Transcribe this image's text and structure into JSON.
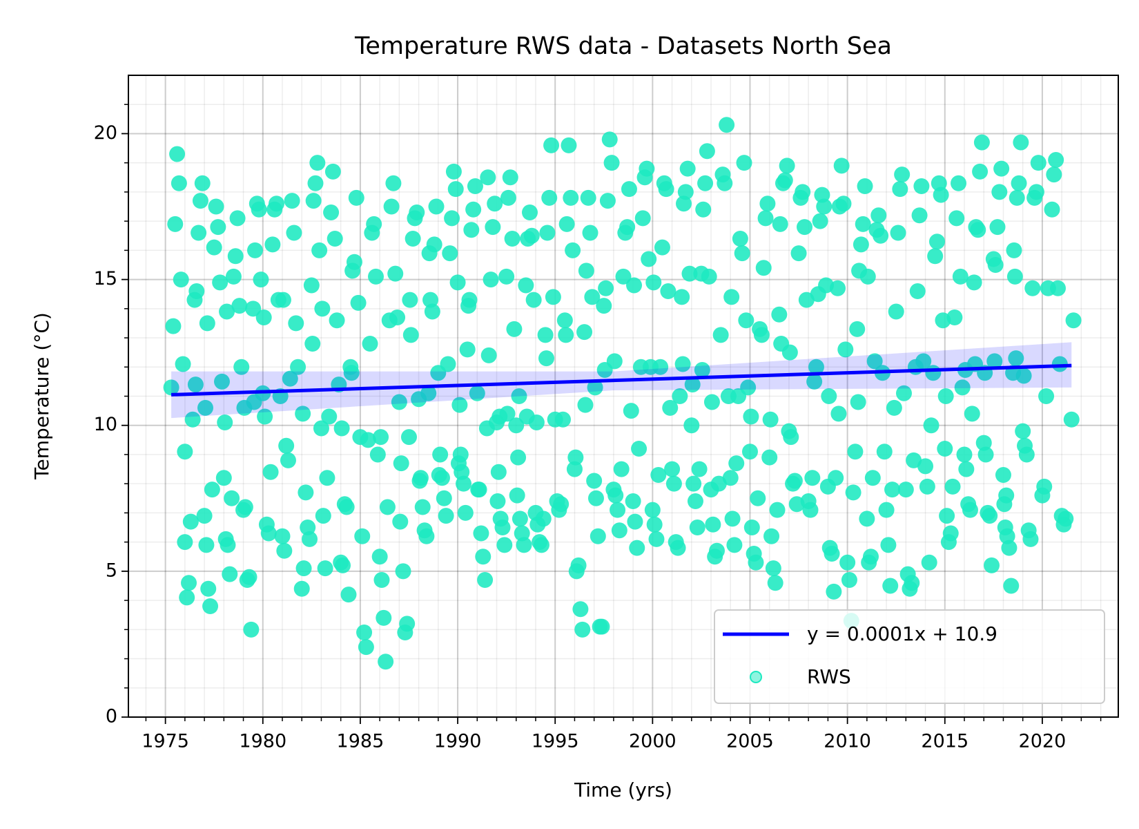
{
  "chart_data": {
    "type": "scatter",
    "title": "Temperature RWS data - Datasets North Sea",
    "xlabel": "Time (yrs)",
    "ylabel": "Temperature (°C)",
    "xlim": [
      1973.1,
      2023.9
    ],
    "ylim": [
      0,
      22
    ],
    "xticks": [
      1975,
      1980,
      1985,
      1990,
      1995,
      2000,
      2005,
      2010,
      2015,
      2020
    ],
    "yticks": [
      0,
      5,
      10,
      15,
      20
    ],
    "xminorticks": [
      1974,
      1976,
      1977,
      1978,
      1979,
      1981,
      1982,
      1983,
      1984,
      1986,
      1987,
      1988,
      1989,
      1991,
      1992,
      1993,
      1994,
      1996,
      1997,
      1998,
      1999,
      2001,
      2002,
      2003,
      2004,
      2006,
      2007,
      2008,
      2009,
      2011,
      2012,
      2013,
      2014,
      2016,
      2017,
      2018,
      2019,
      2021,
      2022,
      2023
    ],
    "yminorticks": [
      1,
      2,
      3,
      4,
      6,
      7,
      8,
      9,
      11,
      12,
      13,
      14,
      16,
      17,
      18,
      19,
      21
    ],
    "grid": true,
    "legend": "lower right",
    "trend": {
      "name": "y = 0.0001x + 10.9",
      "color": "#0000ff",
      "x": [
        1975.3,
        2021.5
      ],
      "values": [
        11.05,
        12.05
      ]
    },
    "band": {
      "color": "#0000ff",
      "x": [
        1975.3,
        1998,
        2021.5
      ],
      "lower": [
        10.25,
        11.2,
        11.3
      ],
      "upper": [
        11.85,
        11.85,
        12.85
      ]
    },
    "series": [
      {
        "name": "RWS",
        "color": "#1de9c0",
        "x": [
          1975.3,
          1975.4,
          1975.5,
          1975.6,
          1975.7,
          1975.8,
          1975.9,
          1976,
          1976,
          1976.1,
          1976.2,
          1976.3,
          1976.4,
          1976.5,
          1976.6,
          1976.7,
          1976.8,
          1976.9,
          1976.55,
          1977,
          1977.1,
          1977.2,
          1977.3,
          1977.4,
          1977.05,
          1977.15,
          1977.5,
          1977.6,
          1977.7,
          1977.8,
          1977.9,
          1978,
          1978.1,
          1978.2,
          1978.3,
          1978.4,
          1978.05,
          1978.15,
          1978.5,
          1978.6,
          1978.7,
          1978.8,
          1978.9,
          1979,
          1979.1,
          1979.2,
          1979.3,
          1979.4,
          1979.05,
          1979.5,
          1979.6,
          1979.7,
          1979.8,
          1979.9,
          1979.55,
          1980,
          1980.1,
          1980.2,
          1980.3,
          1980.4,
          1980.05,
          1980.5,
          1980.6,
          1980.7,
          1980.8,
          1980.9,
          1981,
          1981.1,
          1981.2,
          1981.3,
          1981.4,
          1981.05,
          1981.5,
          1981.6,
          1981.7,
          1981.8,
          1982,
          1982.1,
          1982.2,
          1982.3,
          1982.4,
          1982.05,
          1982.5,
          1982.6,
          1982.7,
          1982.8,
          1982.9,
          1982.55,
          1983,
          1983.1,
          1983.2,
          1983.3,
          1983.4,
          1983.05,
          1983.5,
          1983.6,
          1983.7,
          1983.8,
          1983.9,
          1984,
          1984.1,
          1984.2,
          1984.3,
          1984.4,
          1984.05,
          1984.5,
          1984.6,
          1984.7,
          1984.8,
          1984.9,
          1984.55,
          1985,
          1985.1,
          1985.2,
          1985.3,
          1985.4,
          1985.5,
          1985.6,
          1985.7,
          1985.8,
          1985.9,
          1986,
          1986.1,
          1986.2,
          1986.3,
          1986.4,
          1986.05,
          1986.5,
          1986.6,
          1986.7,
          1986.8,
          1986.9,
          1987,
          1987.1,
          1987.2,
          1987.3,
          1987.4,
          1987.05,
          1987.5,
          1987.6,
          1987.7,
          1987.8,
          1987.9,
          1987.55,
          1988,
          1988.1,
          1988.2,
          1988.3,
          1988.4,
          1988.05,
          1988.5,
          1988.6,
          1988.7,
          1988.8,
          1988.9,
          1988.55,
          1989,
          1989.1,
          1989.2,
          1989.3,
          1989.4,
          1989.05,
          1989.5,
          1989.6,
          1989.7,
          1989.8,
          1989.9,
          1990,
          1990.1,
          1990.2,
          1990.3,
          1990.4,
          1990.05,
          1990.15,
          1990.5,
          1990.6,
          1990.7,
          1990.8,
          1990.9,
          1990.55,
          1991,
          1991.1,
          1991.2,
          1991.3,
          1991.4,
          1991.05,
          1991.5,
          1991.6,
          1991.7,
          1991.8,
          1991.9,
          1991.55,
          1992,
          1992.1,
          1992.2,
          1992.3,
          1992.4,
          1992.05,
          1992.15,
          1992.5,
          1992.6,
          1992.7,
          1992.8,
          1992.9,
          1992.55,
          1993,
          1993.1,
          1993.2,
          1993.3,
          1993.4,
          1993.05,
          1993.15,
          1993.5,
          1993.6,
          1993.7,
          1993.8,
          1993.9,
          1993.55,
          1994,
          1994.1,
          1994.2,
          1994.3,
          1994.4,
          1994.05,
          1994.5,
          1994.6,
          1994.7,
          1994.8,
          1994.9,
          1994.55,
          1995,
          1995.1,
          1995.2,
          1995.3,
          1995.4,
          1995.5,
          1995.6,
          1995.7,
          1995.8,
          1995.9,
          1995.55,
          1996,
          1996.1,
          1996.2,
          1996.3,
          1996.4,
          1996.05,
          1996.5,
          1996.6,
          1996.7,
          1996.8,
          1996.9,
          1996.55,
          1997,
          1997.1,
          1997.2,
          1997.3,
          1997.4,
          1997.05,
          1997.5,
          1997.6,
          1997.7,
          1997.8,
          1997.9,
          1997.55,
          1998,
          1998.1,
          1998.2,
          1998.3,
          1998.4,
          1998.05,
          1998.5,
          1998.6,
          1998.7,
          1998.8,
          1998.9,
          1999,
          1999.1,
          1999.2,
          1999.3,
          1999.4,
          1999.05,
          1999.5,
          1999.6,
          1999.7,
          1999.8,
          1999.9,
          2000,
          2000.1,
          2000.2,
          2000.3,
          2000.4,
          2000.05,
          2000.5,
          2000.6,
          2000.7,
          2000.8,
          2000.9,
          2001,
          2001.1,
          2001.2,
          2001.3,
          2001.4,
          2001.5,
          2001.6,
          2001.7,
          2001.8,
          2001.9,
          2001.55,
          2002,
          2002.1,
          2002.2,
          2002.3,
          2002.4,
          2002.05,
          2002.5,
          2002.6,
          2002.7,
          2002.8,
          2002.9,
          2002.55,
          2003,
          2003.1,
          2003.2,
          2003.3,
          2003.4,
          2003.05,
          2003.5,
          2003.6,
          2003.7,
          2003.8,
          2003.9,
          2004,
          2004.1,
          2004.2,
          2004.3,
          2004.4,
          2004.05,
          2004.5,
          2004.6,
          2004.7,
          2004.8,
          2004.9,
          2005,
          2005.1,
          2005.2,
          2005.3,
          2005.4,
          2005.05,
          2005.5,
          2005.6,
          2005.7,
          2005.8,
          2005.9,
          2006,
          2006.1,
          2006.2,
          2006.3,
          2006.4,
          2006.05,
          2006.5,
          2006.6,
          2006.7,
          2006.8,
          2006.9,
          2006.55,
          2007,
          2007.1,
          2007.2,
          2007.3,
          2007.4,
          2007.05,
          2007.5,
          2007.6,
          2007.7,
          2007.8,
          2007.9,
          2008,
          2008.1,
          2008.2,
          2008.3,
          2008.4,
          2008.5,
          2008.6,
          2008.7,
          2008.8,
          2008.9,
          2009,
          2009.1,
          2009.2,
          2009.3,
          2009.4,
          2009.05,
          2009.5,
          2009.6,
          2009.7,
          2009.8,
          2009.9,
          2009.55,
          2010,
          2010.1,
          2010.2,
          2010.3,
          2010.4,
          2010.5,
          2010.6,
          2010.7,
          2010.8,
          2010.9,
          2010.55,
          2011,
          2011.1,
          2011.2,
          2011.3,
          2011.4,
          2011.05,
          2011.5,
          2011.6,
          2011.7,
          2011.8,
          2011.9,
          2012,
          2012.1,
          2012.2,
          2012.3,
          2012.4,
          2012.5,
          2012.6,
          2012.7,
          2012.8,
          2012.9,
          2013,
          2013.1,
          2013.2,
          2013.3,
          2013.4,
          2013.5,
          2013.6,
          2013.7,
          2013.8,
          2013.9,
          2014,
          2014.1,
          2014.2,
          2014.3,
          2014.4,
          2014.5,
          2014.6,
          2014.7,
          2014.8,
          2014.9,
          2015,
          2015.1,
          2015.2,
          2015.3,
          2015.4,
          2015.05,
          2015.5,
          2015.6,
          2015.7,
          2015.8,
          2015.9,
          2016,
          2016.1,
          2016.2,
          2016.3,
          2016.4,
          2016.05,
          2016.5,
          2016.6,
          2016.7,
          2016.8,
          2016.9,
          2016.55,
          2017,
          2017.1,
          2017.2,
          2017.3,
          2017.4,
          2017.05,
          2017.5,
          2017.6,
          2017.7,
          2017.8,
          2017.9,
          2017.55,
          2018,
          2018.1,
          2018.2,
          2018.3,
          2018.4,
          2018.05,
          2018.15,
          2018.5,
          2018.6,
          2018.7,
          2018.8,
          2018.9,
          2018.55,
          2018.65,
          2019,
          2019.1,
          2019.2,
          2019.3,
          2019.4,
          2019.05,
          2019.5,
          2019.6,
          2019.7,
          2019.8,
          2020,
          2020.1,
          2020.2,
          2020.3,
          2020.5,
          2020.6,
          2020.7,
          2020.8,
          2020.9,
          2021,
          2021.1,
          2021.2,
          2021.5,
          2021.6
        ],
        "values": [
          11.3,
          13.4,
          16.9,
          19.3,
          18.3,
          15.0,
          12.1,
          9.1,
          6.0,
          4.1,
          4.6,
          6.7,
          10.2,
          14.3,
          14.6,
          16.6,
          17.7,
          18.3,
          11.4,
          6.9,
          5.9,
          4.4,
          3.8,
          7.8,
          10.6,
          13.5,
          16.1,
          17.5,
          16.8,
          14.9,
          11.5,
          8.2,
          6.1,
          5.9,
          4.9,
          7.5,
          10.1,
          13.9,
          15.1,
          15.8,
          17.1,
          14.1,
          12.0,
          7.1,
          7.2,
          4.7,
          4.8,
          3.0,
          10.6,
          14.0,
          16.0,
          17.6,
          17.4,
          15.0,
          10.8,
          11.1,
          10.3,
          6.6,
          6.3,
          8.4,
          13.7,
          16.2,
          17.4,
          17.6,
          14.3,
          11.0,
          6.2,
          5.7,
          9.3,
          8.8,
          11.6,
          14.3,
          17.7,
          16.6,
          13.5,
          12.0,
          4.4,
          5.1,
          7.7,
          6.5,
          6.1,
          10.4,
          14.8,
          17.7,
          18.3,
          19.0,
          16.0,
          12.8,
          9.9,
          6.9,
          5.1,
          8.2,
          10.3,
          14.0,
          17.3,
          18.7,
          16.4,
          13.6,
          11.4,
          5.3,
          5.2,
          7.3,
          7.2,
          4.2,
          9.9,
          12.0,
          15.3,
          15.6,
          17.8,
          14.2,
          11.8,
          9.6,
          6.2,
          2.9,
          2.4,
          9.5,
          12.8,
          16.6,
          16.9,
          15.1,
          9.0,
          5.5,
          4.7,
          3.4,
          1.9,
          7.2,
          9.6,
          13.6,
          17.5,
          18.3,
          15.2,
          13.7,
          10.8,
          8.7,
          5.0,
          2.9,
          3.2,
          6.7,
          9.6,
          13.1,
          16.4,
          17.1,
          17.3,
          14.3,
          10.9,
          8.2,
          7.2,
          6.4,
          6.2,
          8.1,
          11.1,
          14.3,
          13.9,
          16.2,
          17.5,
          15.9,
          11.8,
          9.0,
          8.2,
          7.5,
          6.9,
          8.3,
          12.1,
          15.9,
          17.1,
          18.7,
          18.1,
          14.9,
          10.7,
          8.4,
          8.0,
          7.0,
          8.7,
          9.0,
          12.6,
          14.3,
          16.7,
          17.4,
          18.2,
          14.1,
          11.1,
          7.8,
          6.3,
          5.5,
          4.7,
          7.8,
          9.9,
          12.4,
          15.0,
          16.8,
          17.6,
          18.5,
          10.1,
          8.4,
          6.8,
          6.5,
          5.9,
          7.4,
          10.3,
          15.1,
          17.8,
          18.5,
          16.4,
          13.3,
          10.4,
          10.0,
          8.9,
          6.8,
          6.3,
          5.9,
          7.6,
          11.0,
          14.8,
          16.4,
          17.3,
          16.5,
          14.3,
          10.3,
          7.0,
          6.6,
          6.0,
          5.9,
          6.8,
          10.1,
          13.1,
          16.6,
          17.8,
          19.6,
          14.4,
          12.3,
          10.2,
          7.4,
          7.1,
          7.3,
          10.2,
          13.6,
          16.9,
          19.6,
          17.8,
          16.0,
          13.1,
          8.5,
          5.0,
          5.2,
          3.7,
          3.0,
          8.9,
          13.2,
          15.3,
          17.8,
          16.6,
          14.4,
          10.7,
          8.1,
          7.5,
          6.2,
          3.1,
          3.1,
          11.3,
          14.1,
          14.7,
          17.7,
          19.8,
          19.0,
          11.9,
          7.8,
          7.6,
          7.1,
          6.4,
          8.5,
          12.2,
          15.1,
          16.6,
          16.8,
          18.1,
          10.5,
          7.4,
          6.7,
          5.8,
          9.2,
          12.0,
          14.8,
          17.1,
          18.5,
          18.8,
          15.7,
          12.0,
          7.1,
          6.6,
          6.1,
          8.3,
          12.0,
          14.9,
          16.1,
          18.3,
          18.1,
          14.6,
          10.6,
          8.5,
          8.0,
          6.0,
          5.8,
          11.0,
          14.4,
          17.6,
          18.0,
          18.8,
          15.2,
          12.1,
          10.0,
          8.0,
          7.4,
          6.5,
          8.5,
          11.4,
          15.2,
          17.4,
          18.3,
          19.4,
          15.1,
          11.9,
          7.8,
          6.6,
          5.5,
          5.7,
          8.0,
          10.8,
          13.1,
          18.6,
          18.3,
          20.3,
          11.0,
          8.2,
          6.8,
          5.9,
          8.7,
          11.0,
          14.4,
          16.4,
          15.9,
          19.0,
          13.6,
          11.3,
          9.1,
          6.5,
          5.6,
          5.3,
          7.5,
          10.3,
          13.3,
          13.1,
          15.4,
          17.1,
          17.6,
          8.9,
          6.2,
          5.1,
          4.6,
          7.1,
          10.2,
          13.8,
          12.8,
          18.3,
          18.4,
          18.9,
          16.9,
          9.8,
          9.6,
          8.0,
          8.1,
          7.3,
          12.5,
          15.9,
          17.8,
          18.0,
          16.8,
          14.3,
          7.4,
          7.1,
          8.2,
          11.5,
          12.0,
          14.5,
          17.0,
          17.9,
          17.5,
          14.8,
          7.9,
          5.8,
          5.6,
          4.3,
          8.2,
          11.0,
          14.7,
          17.5,
          18.9,
          17.6,
          12.6,
          10.4,
          5.3,
          4.7,
          3.3,
          7.7,
          9.1,
          13.3,
          15.3,
          16.2,
          16.9,
          18.2,
          10.8,
          6.8,
          5.3,
          5.5,
          8.2,
          12.2,
          15.1,
          16.7,
          17.2,
          16.5,
          11.8,
          9.1,
          7.1,
          5.9,
          4.5,
          7.8,
          10.6,
          13.9,
          16.6,
          18.1,
          18.6,
          11.1,
          7.8,
          4.9,
          4.4,
          4.6,
          8.8,
          12.0,
          14.6,
          17.2,
          18.2,
          12.2,
          8.6,
          7.9,
          5.3,
          10.0,
          11.8,
          15.8,
          16.3,
          18.3,
          17.9,
          13.6,
          9.2,
          6.9,
          6.0,
          6.3,
          7.9,
          11.0,
          13.7,
          17.1,
          18.3,
          15.1,
          11.3,
          9.0,
          8.5,
          7.3,
          7.1,
          10.4,
          11.9,
          14.9,
          16.8,
          16.7,
          18.7,
          19.7,
          12.1,
          9.4,
          9.0,
          7.0,
          6.9,
          5.2,
          11.8,
          15.7,
          15.5,
          16.8,
          18.0,
          18.8,
          12.2,
          8.3,
          6.5,
          6.2,
          5.8,
          4.5,
          7.3,
          7.6,
          11.8,
          15.1,
          17.8,
          18.3,
          19.7,
          16.0,
          12.3,
          9.8,
          9.3,
          9.0,
          6.4,
          6.1,
          11.7,
          14.7,
          17.8,
          18.0,
          19.0,
          7.6,
          7.9,
          11.0,
          14.7,
          17.4,
          18.6,
          19.1,
          14.7,
          12.1,
          6.9,
          6.6,
          6.8,
          10.2,
          13.6
        ]
      }
    ]
  }
}
